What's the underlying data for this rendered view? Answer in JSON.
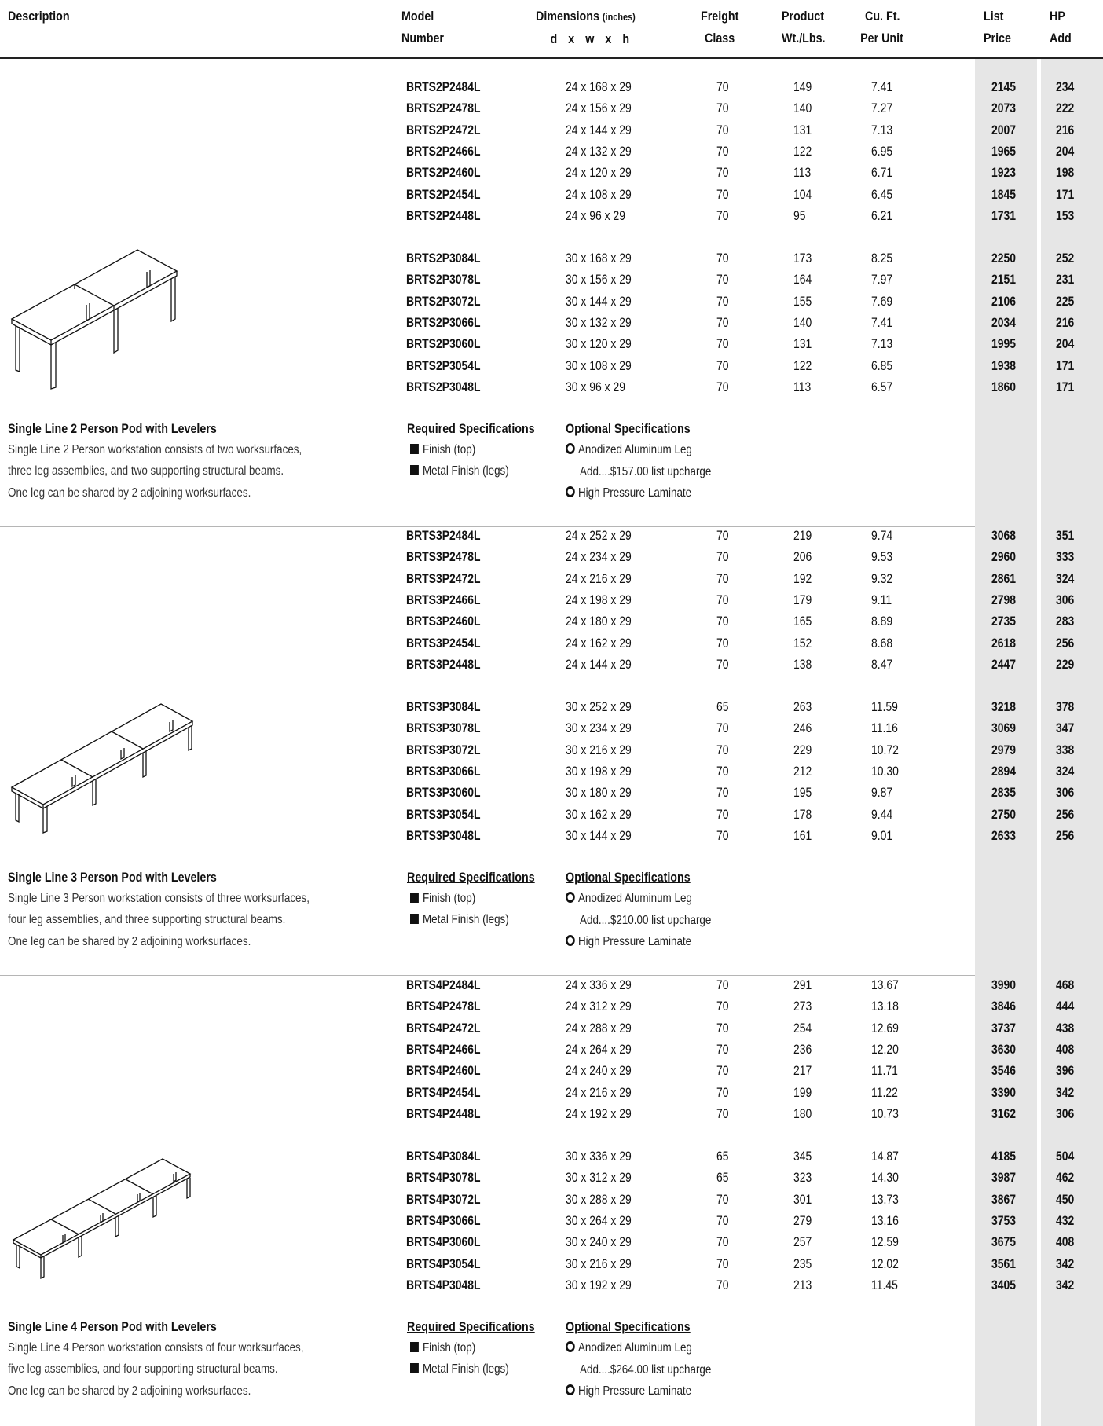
{
  "header": {
    "description": "Description",
    "model_line1": "Model",
    "model_line2": "Number",
    "dimensions_line1": "Dimensions",
    "dimensions_unit": "(inches)",
    "dimensions_line2": "d x w x h",
    "freight_line1": "Freight",
    "freight_line2": "Class",
    "weight_line1": "Product",
    "weight_line2": "Wt./Lbs.",
    "cuft_line1": "Cu. Ft.",
    "cuft_line2": "Per Unit",
    "price_line1": "List",
    "price_line2": "Price",
    "hp_line1": "HP",
    "hp_line2": "Add"
  },
  "sections": [
    {
      "title": "Single Line 2 Person Pod with Levelers",
      "description": [
        "Single Line 2 Person workstation consists of two worksurfaces,",
        "three leg assemblies, and two supporting structural beams.",
        "One leg can be shared by 2 adjoining worksurfaces."
      ],
      "required_heading": "Required Specifications",
      "required": [
        "Finish (top)",
        "Metal Finish (legs)"
      ],
      "optional_heading": "Optional Specifications",
      "optional_1": "Anodized Aluminum Leg",
      "optional_1_note": "Add....$157.00 list upcharge",
      "optional_2": "High Pressure Laminate",
      "group1": [
        [
          "BRTS2P2484L",
          "24 x 168 x 29",
          "70",
          "149",
          "7.41",
          "2145",
          "234"
        ],
        [
          "BRTS2P2478L",
          "24 x 156 x 29",
          "70",
          "140",
          "7.27",
          "2073",
          "222"
        ],
        [
          "BRTS2P2472L",
          "24 x 144 x 29",
          "70",
          "131",
          "7.13",
          "2007",
          "216"
        ],
        [
          "BRTS2P2466L",
          "24 x 132 x 29",
          "70",
          "122",
          "6.95",
          "1965",
          "204"
        ],
        [
          "BRTS2P2460L",
          "24 x 120 x 29",
          "70",
          "113",
          "6.71",
          "1923",
          "198"
        ],
        [
          "BRTS2P2454L",
          "24 x 108 x 29",
          "70",
          "104",
          "6.45",
          "1845",
          "171"
        ],
        [
          "BRTS2P2448L",
          "24 x 96 x 29",
          "70",
          "95",
          "6.21",
          "1731",
          "153"
        ]
      ],
      "group2": [
        [
          "BRTS2P3084L",
          "30 x 168 x 29",
          "70",
          "173",
          "8.25",
          "2250",
          "252"
        ],
        [
          "BRTS2P3078L",
          "30 x 156 x 29",
          "70",
          "164",
          "7.97",
          "2151",
          "231"
        ],
        [
          "BRTS2P3072L",
          "30 x 144 x 29",
          "70",
          "155",
          "7.69",
          "2106",
          "225"
        ],
        [
          "BRTS2P3066L",
          "30 x 132 x 29",
          "70",
          "140",
          "7.41",
          "2034",
          "216"
        ],
        [
          "BRTS2P3060L",
          "30 x 120 x 29",
          "70",
          "131",
          "7.13",
          "1995",
          "204"
        ],
        [
          "BRTS2P3054L",
          "30 x 108 x 29",
          "70",
          "122",
          "6.85",
          "1938",
          "171"
        ],
        [
          "BRTS2P3048L",
          "30 x 96 x 29",
          "70",
          "113",
          "6.57",
          "1860",
          "171"
        ]
      ]
    },
    {
      "title": "Single Line 3 Person Pod with Levelers",
      "description": [
        "Single Line 3 Person workstation consists of three worksurfaces,",
        "four leg assemblies, and three supporting structural beams.",
        "One leg can be shared by 2 adjoining worksurfaces."
      ],
      "required_heading": "Required Specifications",
      "required": [
        "Finish (top)",
        "Metal Finish (legs)"
      ],
      "optional_heading": "Optional Specifications",
      "optional_1": "Anodized Aluminum Leg",
      "optional_1_note": "Add....$210.00 list upcharge",
      "optional_2": "High Pressure Laminate",
      "group1": [
        [
          "BRTS3P2484L",
          "24 x 252 x 29",
          "70",
          "219",
          "9.74",
          "3068",
          "351"
        ],
        [
          "BRTS3P2478L",
          "24 x 234 x 29",
          "70",
          "206",
          "9.53",
          "2960",
          "333"
        ],
        [
          "BRTS3P2472L",
          "24 x 216 x 29",
          "70",
          "192",
          "9.32",
          "2861",
          "324"
        ],
        [
          "BRTS3P2466L",
          "24 x 198 x 29",
          "70",
          "179",
          "9.11",
          "2798",
          "306"
        ],
        [
          "BRTS3P2460L",
          "24 x 180 x 29",
          "70",
          "165",
          "8.89",
          "2735",
          "283"
        ],
        [
          "BRTS3P2454L",
          "24 x 162 x 29",
          "70",
          "152",
          "8.68",
          "2618",
          "256"
        ],
        [
          "BRTS3P2448L",
          "24 x 144 x 29",
          "70",
          "138",
          "8.47",
          "2447",
          "229"
        ]
      ],
      "group2": [
        [
          "BRTS3P3084L",
          "30 x 252 x 29",
          "65",
          "263",
          "11.59",
          "3218",
          "378"
        ],
        [
          "BRTS3P3078L",
          "30 x 234 x 29",
          "70",
          "246",
          "11.16",
          "3069",
          "347"
        ],
        [
          "BRTS3P3072L",
          "30 x 216 x 29",
          "70",
          "229",
          "10.72",
          "2979",
          "338"
        ],
        [
          "BRTS3P3066L",
          "30 x 198 x 29",
          "70",
          "212",
          "10.30",
          "2894",
          "324"
        ],
        [
          "BRTS3P3060L",
          "30 x 180 x 29",
          "70",
          "195",
          "9.87",
          "2835",
          "306"
        ],
        [
          "BRTS3P3054L",
          "30 x 162 x 29",
          "70",
          "178",
          "9.44",
          "2750",
          "256"
        ],
        [
          "BRTS3P3048L",
          "30 x 144 x 29",
          "70",
          "161",
          "9.01",
          "2633",
          "256"
        ]
      ]
    },
    {
      "title": "Single Line 4 Person Pod with Levelers",
      "description": [
        "Single Line 4 Person workstation consists of four worksurfaces,",
        "five leg assemblies, and four supporting structural beams.",
        "One leg can be shared by 2 adjoining worksurfaces."
      ],
      "required_heading": "Required Specifications",
      "required": [
        "Finish (top)",
        "Metal Finish (legs)"
      ],
      "optional_heading": "Optional Specifications",
      "optional_1": "Anodized Aluminum Leg",
      "optional_1_note": "Add....$264.00 list upcharge",
      "optional_2": "High Pressure Laminate",
      "group1": [
        [
          "BRTS4P2484L",
          "24 x 336 x 29",
          "70",
          "291",
          "13.67",
          "3990",
          "468"
        ],
        [
          "BRTS4P2478L",
          "24 x 312 x 29",
          "70",
          "273",
          "13.18",
          "3846",
          "444"
        ],
        [
          "BRTS4P2472L",
          "24 x 288 x 29",
          "70",
          "254",
          "12.69",
          "3737",
          "438"
        ],
        [
          "BRTS4P2466L",
          "24 x 264 x 29",
          "70",
          "236",
          "12.20",
          "3630",
          "408"
        ],
        [
          "BRTS4P2460L",
          "24 x 240 x 29",
          "70",
          "217",
          "11.71",
          "3546",
          "396"
        ],
        [
          "BRTS4P2454L",
          "24 x 216 x 29",
          "70",
          "199",
          "11.22",
          "3390",
          "342"
        ],
        [
          "BRTS4P2448L",
          "24 x 192 x 29",
          "70",
          "180",
          "10.73",
          "3162",
          "306"
        ]
      ],
      "group2": [
        [
          "BRTS4P3084L",
          "30 x 336 x 29",
          "65",
          "345",
          "14.87",
          "4185",
          "504"
        ],
        [
          "BRTS4P3078L",
          "30 x 312 x 29",
          "65",
          "323",
          "14.30",
          "3987",
          "462"
        ],
        [
          "BRTS4P3072L",
          "30 x 288 x 29",
          "70",
          "301",
          "13.73",
          "3867",
          "450"
        ],
        [
          "BRTS4P3066L",
          "30 x 264 x 29",
          "70",
          "279",
          "13.16",
          "3753",
          "432"
        ],
        [
          "BRTS4P3060L",
          "30 x 240 x 29",
          "70",
          "257",
          "12.59",
          "3675",
          "408"
        ],
        [
          "BRTS4P3054L",
          "30 x 216 x 29",
          "70",
          "235",
          "12.02",
          "3561",
          "342"
        ],
        [
          "BRTS4P3048L",
          "30 x 192 x 29",
          "70",
          "213",
          "11.45",
          "3405",
          "342"
        ]
      ]
    }
  ]
}
